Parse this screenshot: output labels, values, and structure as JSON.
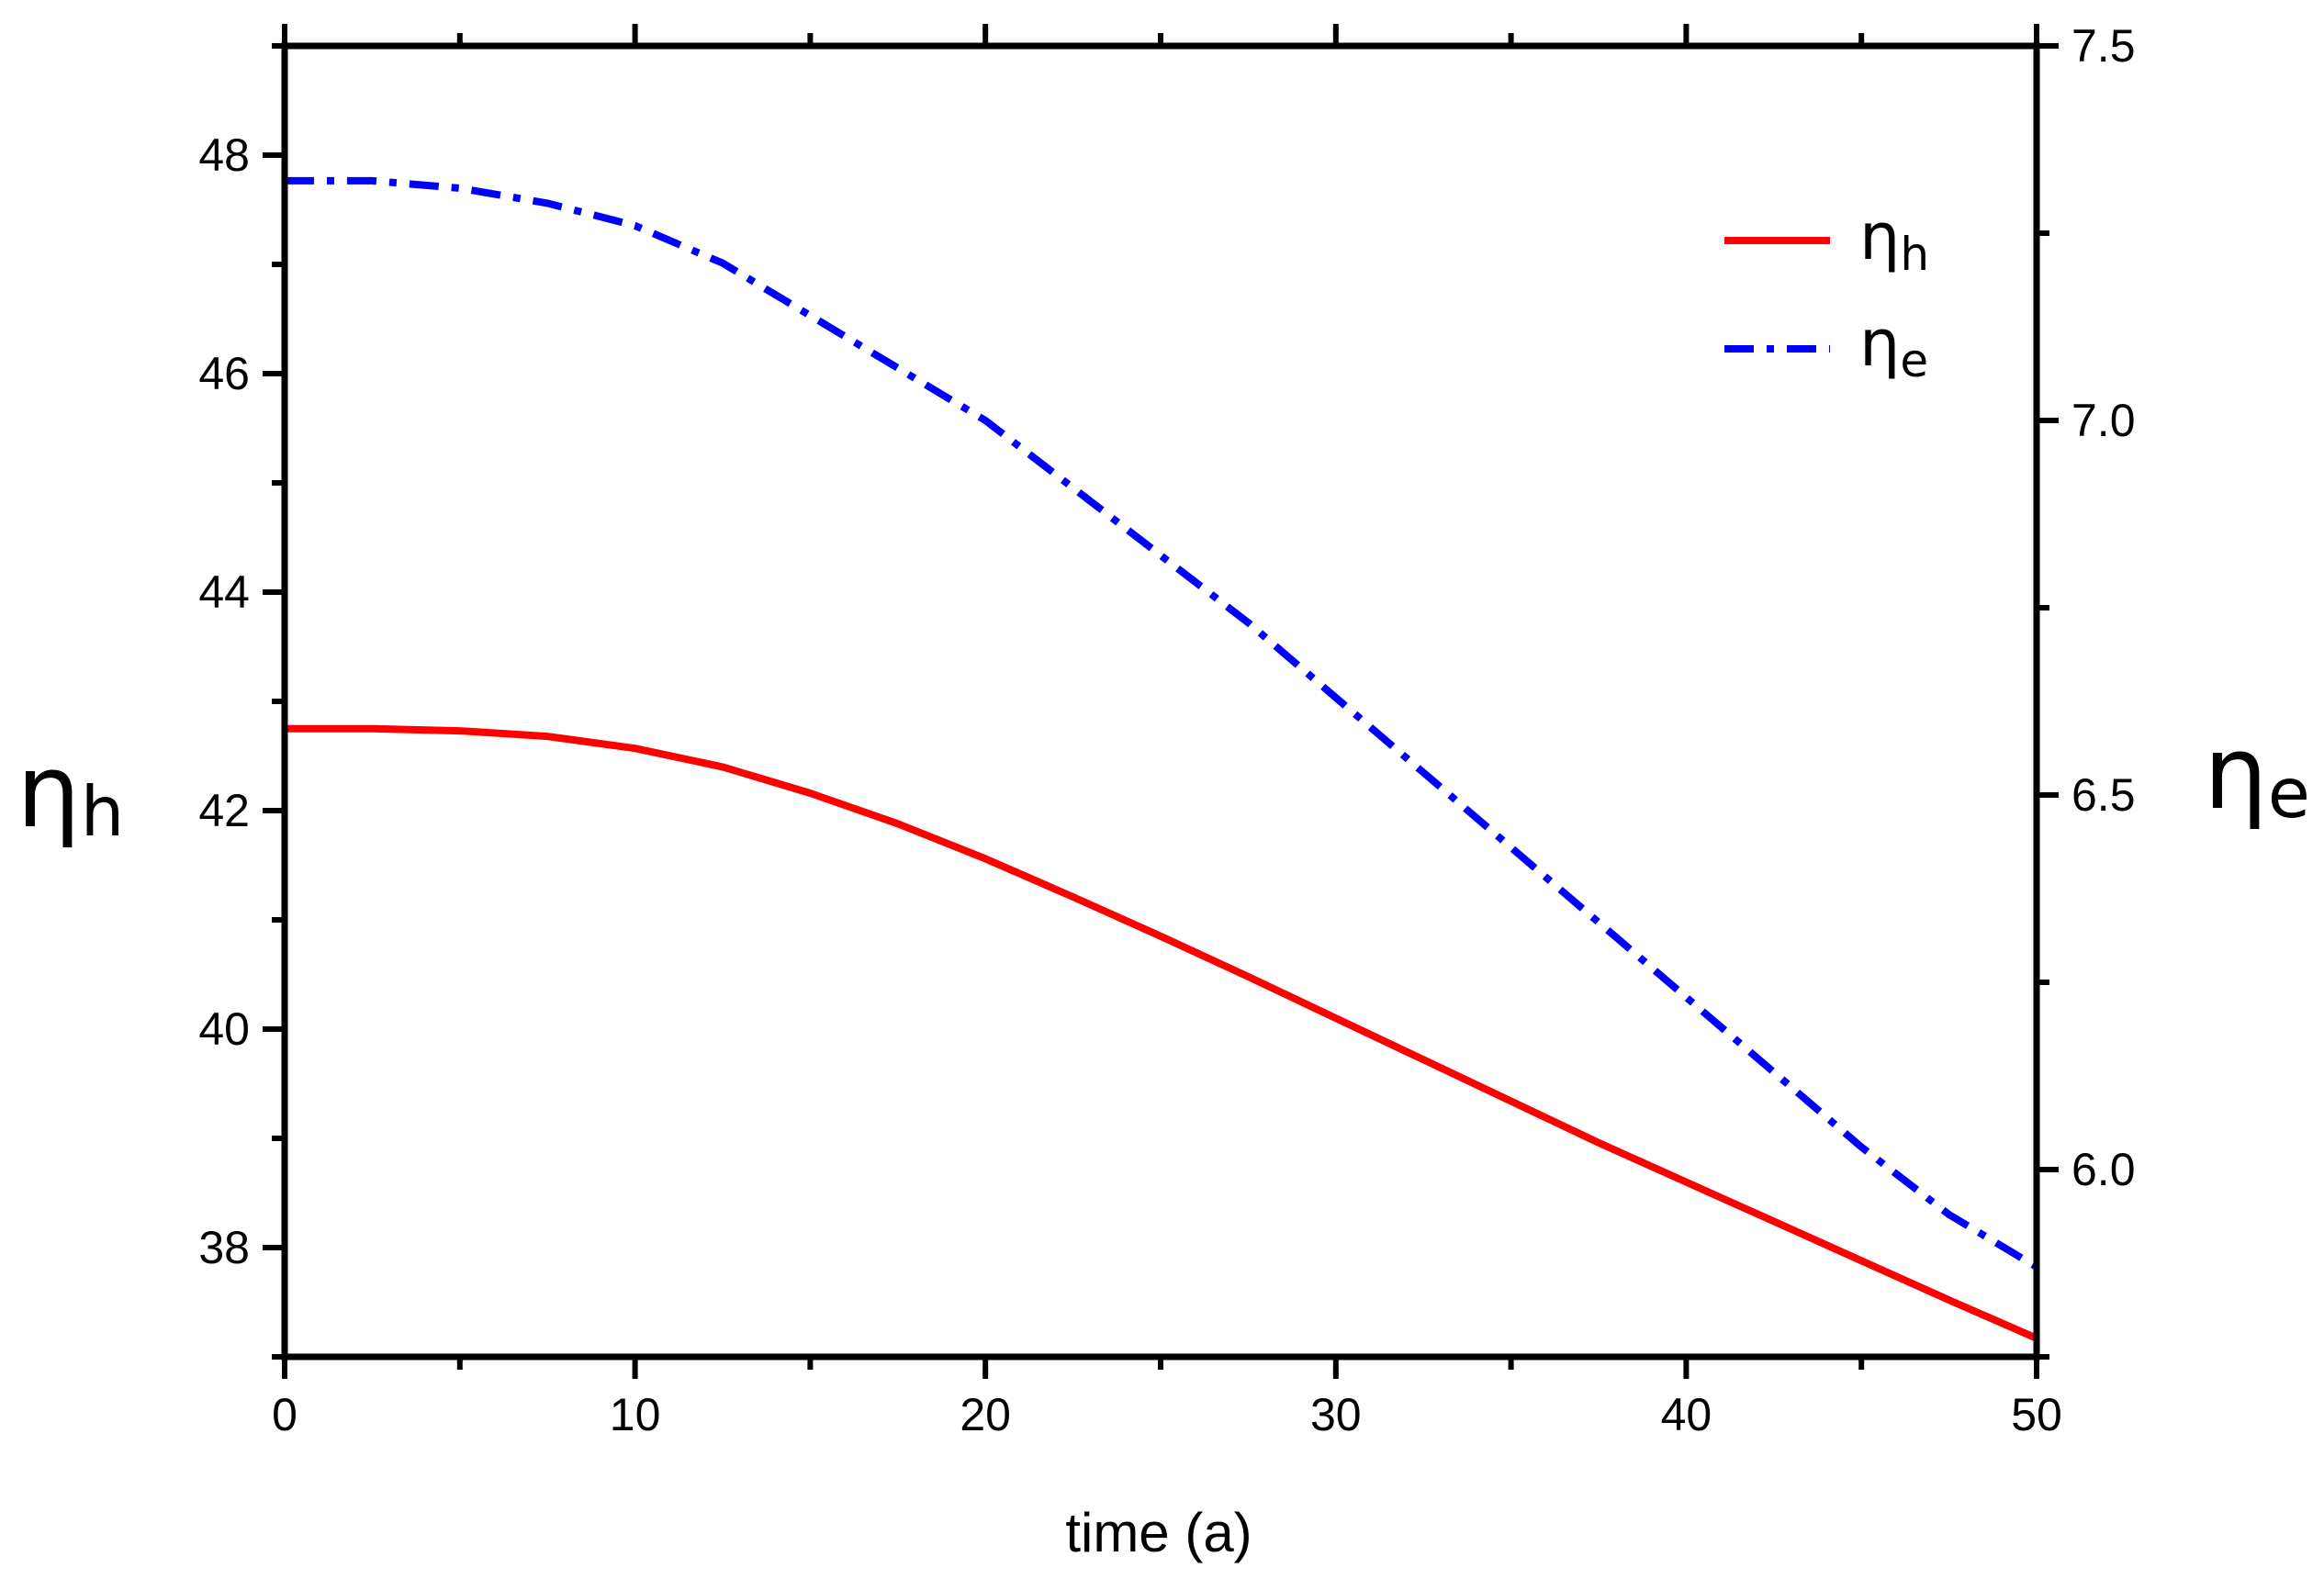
{
  "chart_data": {
    "type": "line",
    "title": "",
    "xlabel": "time (a)",
    "xlim": [
      0,
      50
    ],
    "x_ticks": [
      0,
      10,
      20,
      30,
      40,
      50
    ],
    "y_left": {
      "label_main": "η",
      "label_sub": "h",
      "ylim": [
        37,
        49
      ],
      "ticks": [
        38,
        40,
        42,
        44,
        46,
        48
      ]
    },
    "y_right": {
      "label_main": "η",
      "label_sub": "e",
      "ylim": [
        5.75,
        7.5
      ],
      "ticks": [
        "6.0",
        "6.5",
        "7.0",
        "7.5"
      ]
    },
    "grid": false,
    "legend_position": "top-right",
    "x": [
      0,
      2.5,
      5,
      7.5,
      10,
      12.5,
      15,
      17.5,
      20,
      22.5,
      25,
      27.5,
      30,
      32.5,
      35,
      37.5,
      40,
      42.5,
      45,
      47.5,
      50
    ],
    "series": [
      {
        "name": "ηh",
        "name_main": "η",
        "name_sub": "h",
        "axis": "left",
        "color": "#ff0000",
        "style": "solid",
        "values": [
          42.75,
          42.75,
          42.73,
          42.68,
          42.57,
          42.4,
          42.16,
          41.88,
          41.56,
          41.21,
          40.85,
          40.48,
          40.1,
          39.72,
          39.34,
          38.96,
          38.6,
          38.24,
          37.88,
          37.52,
          37.17
        ]
      },
      {
        "name": "ηe",
        "name_main": "η",
        "name_sub": "e",
        "axis": "right",
        "color": "#0000ff",
        "style": "dash-dot",
        "values": [
          7.32,
          7.32,
          7.31,
          7.29,
          7.26,
          7.21,
          7.14,
          7.07,
          7.0,
          6.91,
          6.82,
          6.73,
          6.63,
          6.53,
          6.43,
          6.33,
          6.23,
          6.13,
          6.03,
          5.94,
          5.87
        ]
      }
    ]
  }
}
